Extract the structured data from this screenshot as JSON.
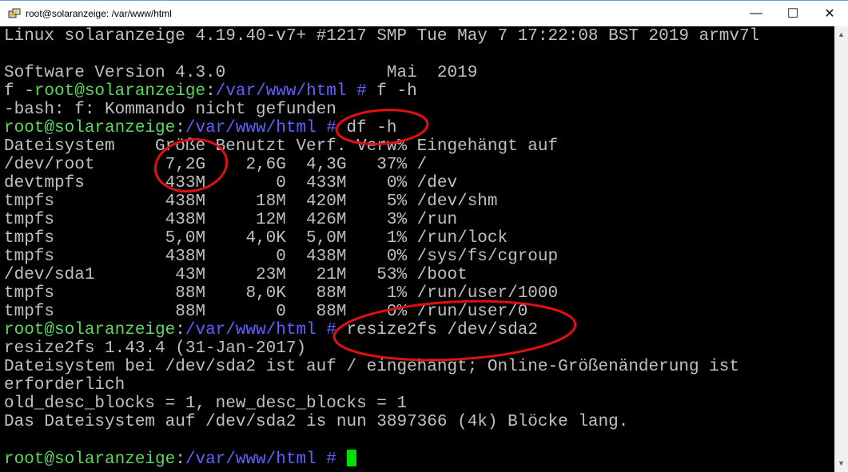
{
  "window": {
    "title": "root@solaranzeige: /var/www/html",
    "minimize": "—",
    "maximize": "☐",
    "close": "✕",
    "icon": "putty-icon"
  },
  "terminal": {
    "lines": [
      [
        [
          "Linux solaranzeige 4.19.40-v7+ #1217 SMP Tue May 7 17:22:08 BST 2019 armv7l",
          ""
        ]
      ],
      [],
      [
        [
          "Software Version 4.3.0                Mai  2019",
          ""
        ]
      ],
      [
        [
          "f -",
          ""
        ],
        [
          "root@solaranzeige",
          "g"
        ],
        [
          ":",
          ""
        ],
        [
          "/var/www/html #",
          "b"
        ],
        [
          " f -h",
          ""
        ]
      ],
      [
        [
          "-bash: f: Kommando nicht gefunden",
          ""
        ]
      ],
      [
        [
          "root@solaranzeige",
          "g"
        ],
        [
          ":",
          ""
        ],
        [
          "/var/www/html #",
          "b"
        ],
        [
          " df -h",
          ""
        ]
      ],
      [
        [
          "Dateisystem    Größe Benutzt Verf. Verw% Eingehängt auf",
          ""
        ]
      ],
      [
        [
          "/dev/root       7,2G    2,6G  4,3G   37% /",
          ""
        ]
      ],
      [
        [
          "devtmpfs        433M       0  433M    0% /dev",
          ""
        ]
      ],
      [
        [
          "tmpfs           438M     18M  420M    5% /dev/shm",
          ""
        ]
      ],
      [
        [
          "tmpfs           438M     12M  426M    3% /run",
          ""
        ]
      ],
      [
        [
          "tmpfs           5,0M    4,0K  5,0M    1% /run/lock",
          ""
        ]
      ],
      [
        [
          "tmpfs           438M       0  438M    0% /sys/fs/cgroup",
          ""
        ]
      ],
      [
        [
          "/dev/sda1        43M     23M   21M   53% /boot",
          ""
        ]
      ],
      [
        [
          "tmpfs            88M    8,0K   88M    1% /run/user/1000",
          ""
        ]
      ],
      [
        [
          "tmpfs            88M       0   88M    0% /run/user/0",
          ""
        ]
      ],
      [
        [
          "root@solaranzeige",
          "g"
        ],
        [
          ":",
          ""
        ],
        [
          "/var/www/html #",
          "b"
        ],
        [
          " resize2fs /dev/sda2",
          ""
        ]
      ],
      [
        [
          "resize2fs 1.43.4 (31-Jan-2017)",
          ""
        ]
      ],
      [
        [
          "Dateisystem bei /dev/sda2 ist auf / eingehängt; Online-Größenänderung ist",
          ""
        ]
      ],
      [
        [
          "erforderlich",
          ""
        ]
      ],
      [
        [
          "old_desc_blocks = 1, new_desc_blocks = 1",
          ""
        ]
      ],
      [
        [
          "Das Dateisystem auf /dev/sda2 is nun 3897366 (4k) Blöcke lang.",
          ""
        ]
      ],
      [],
      [
        [
          "root@solaranzeige",
          "g"
        ],
        [
          ":",
          ""
        ],
        [
          "/var/www/html #",
          "b"
        ],
        [
          " ",
          ""
        ]
      ]
    ],
    "cursor_color": "#00e000",
    "prompt_user_color": "#5fd75f",
    "prompt_path_color": "#6060ff",
    "annotation_color": "#e01010"
  }
}
